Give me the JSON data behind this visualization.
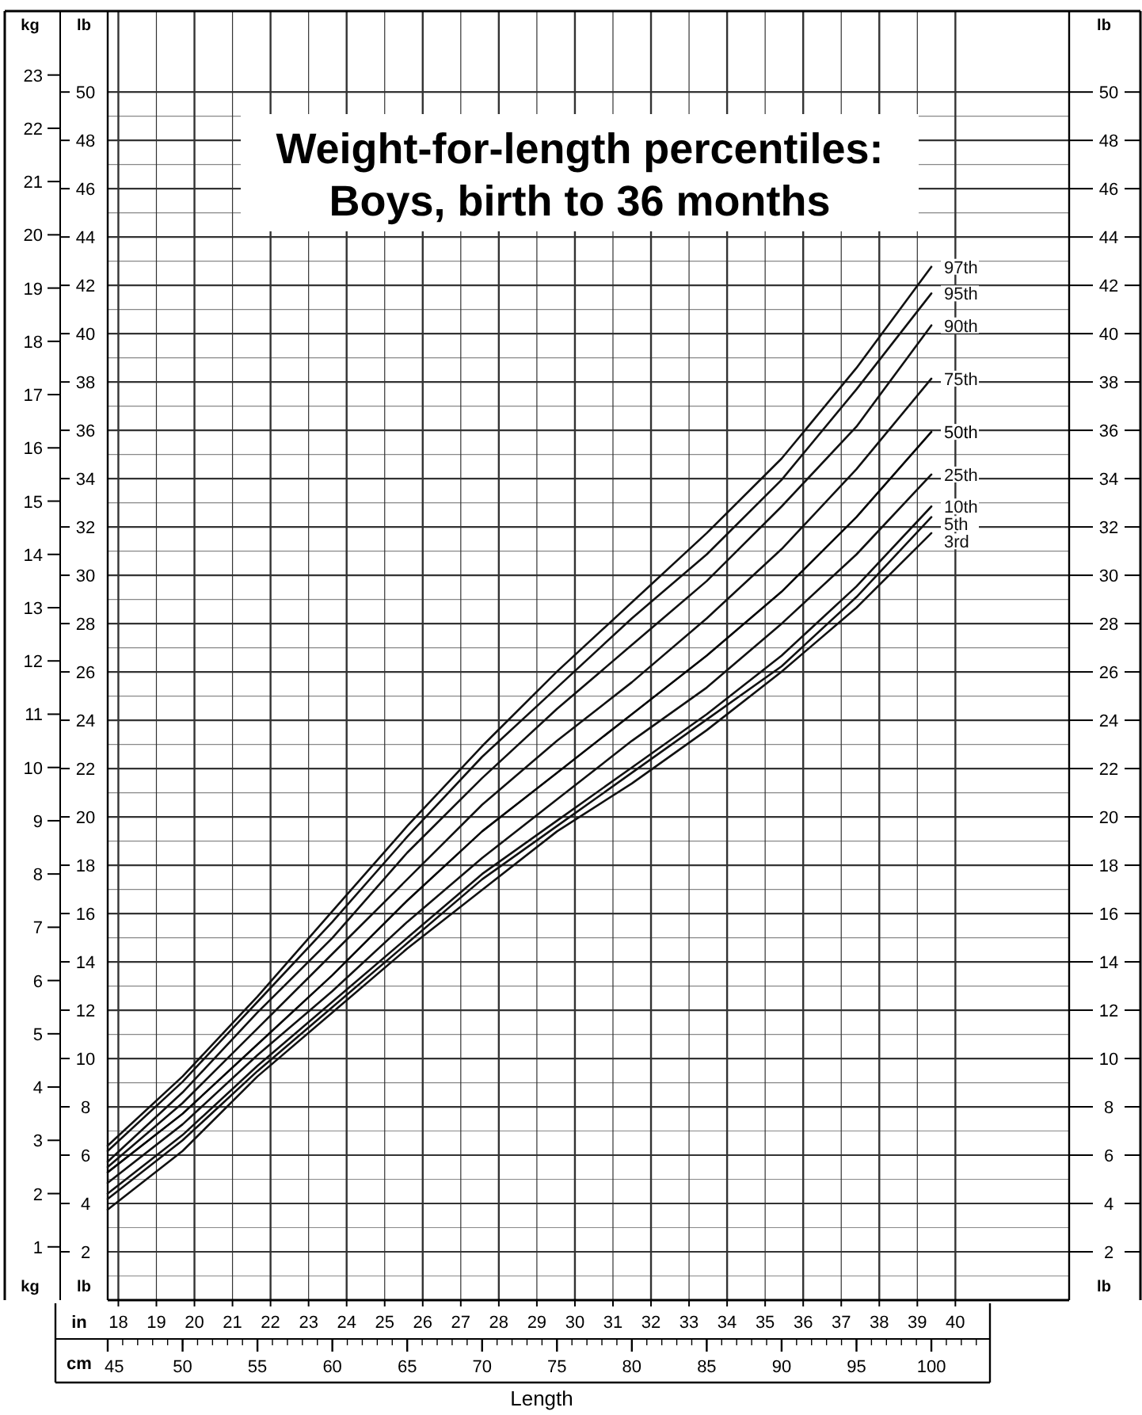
{
  "chart_data": {
    "type": "line",
    "title": "Weight-for-length percentiles:",
    "subtitle": "Boys, birth to 36 months",
    "xlabel": "Length",
    "ylabel": "kg",
    "y2label": "lb",
    "x2label": "in",
    "annotations": [
      "cm"
    ],
    "x": [
      45,
      50,
      55,
      60,
      65,
      70,
      75,
      80,
      85,
      90,
      95,
      100
    ],
    "xlim": [
      45,
      109.2
    ],
    "xticks": [
      45,
      50,
      55,
      60,
      65,
      70,
      75,
      80,
      85,
      90,
      95,
      100
    ],
    "x2lim": [
      17.72,
      42.99
    ],
    "x2ticks": [
      18,
      19,
      20,
      21,
      22,
      23,
      24,
      25,
      26,
      27,
      28,
      29,
      30,
      31,
      32,
      33,
      34,
      35,
      36,
      37,
      38,
      39,
      40
    ],
    "ylim": [
      0,
      24.2
    ],
    "yticks": [
      1,
      2,
      3,
      4,
      5,
      6,
      7,
      8,
      9,
      10,
      11,
      12,
      13,
      14,
      15,
      16,
      17,
      18,
      19,
      20,
      21,
      22,
      23
    ],
    "y2lim": [
      0,
      53.35
    ],
    "y2ticks": [
      2,
      4,
      6,
      8,
      10,
      12,
      14,
      16,
      18,
      20,
      22,
      24,
      26,
      28,
      30,
      32,
      34,
      36,
      38,
      40,
      42,
      44,
      46,
      48,
      50
    ],
    "y3label": "lb",
    "y3lim": [
      0,
      53.35
    ],
    "y3ticks": [
      2,
      4,
      6,
      8,
      10,
      12,
      14,
      16,
      18,
      20,
      22,
      24,
      26,
      28,
      30,
      32,
      34,
      36,
      38,
      40,
      42,
      44,
      46,
      48,
      50
    ],
    "grid": true,
    "marker": "none",
    "line_style": "solid",
    "series": [
      {
        "name": "97th",
        "color": "#111111",
        "values": [
          2.9,
          4.2,
          5.7,
          7.3,
          8.9,
          10.4,
          11.8,
          13.1,
          14.4,
          15.8,
          17.5,
          19.4
        ]
      },
      {
        "name": "95th",
        "color": "#111111",
        "values": [
          2.8,
          4.1,
          5.6,
          7.1,
          8.7,
          10.2,
          11.5,
          12.8,
          14.0,
          15.4,
          17.1,
          18.9
        ]
      },
      {
        "name": "90th",
        "color": "#111111",
        "values": [
          2.6,
          3.9,
          5.4,
          6.8,
          8.4,
          9.8,
          11.1,
          12.3,
          13.5,
          14.9,
          16.4,
          18.3
        ]
      },
      {
        "name": "75th",
        "color": "#111111",
        "values": [
          2.5,
          3.7,
          5.1,
          6.5,
          7.9,
          9.3,
          10.5,
          11.6,
          12.8,
          14.1,
          15.6,
          17.3
        ]
      },
      {
        "name": "50th",
        "color": "#000000",
        "values": [
          2.4,
          3.5,
          4.8,
          6.1,
          7.5,
          8.8,
          9.9,
          11.0,
          12.1,
          13.3,
          14.7,
          16.3
        ]
      },
      {
        "name": "25th",
        "color": "#111111",
        "values": [
          2.2,
          3.3,
          4.6,
          5.8,
          7.1,
          8.3,
          9.4,
          10.5,
          11.5,
          12.7,
          14.0,
          15.5
        ]
      },
      {
        "name": "10th",
        "color": "#111111",
        "values": [
          2.0,
          3.1,
          4.4,
          5.6,
          6.8,
          8.0,
          9.0,
          10.0,
          11.0,
          12.1,
          13.4,
          14.9
        ]
      },
      {
        "name": "5th",
        "color": "#111111",
        "values": [
          1.9,
          3.0,
          4.3,
          5.5,
          6.7,
          7.9,
          8.9,
          9.9,
          10.9,
          11.9,
          13.2,
          14.7
        ]
      },
      {
        "name": "3rd",
        "color": "#111111",
        "values": [
          1.7,
          2.8,
          4.2,
          5.4,
          6.6,
          7.7,
          8.8,
          9.7,
          10.7,
          11.8,
          13.0,
          14.4
        ]
      }
    ]
  }
}
